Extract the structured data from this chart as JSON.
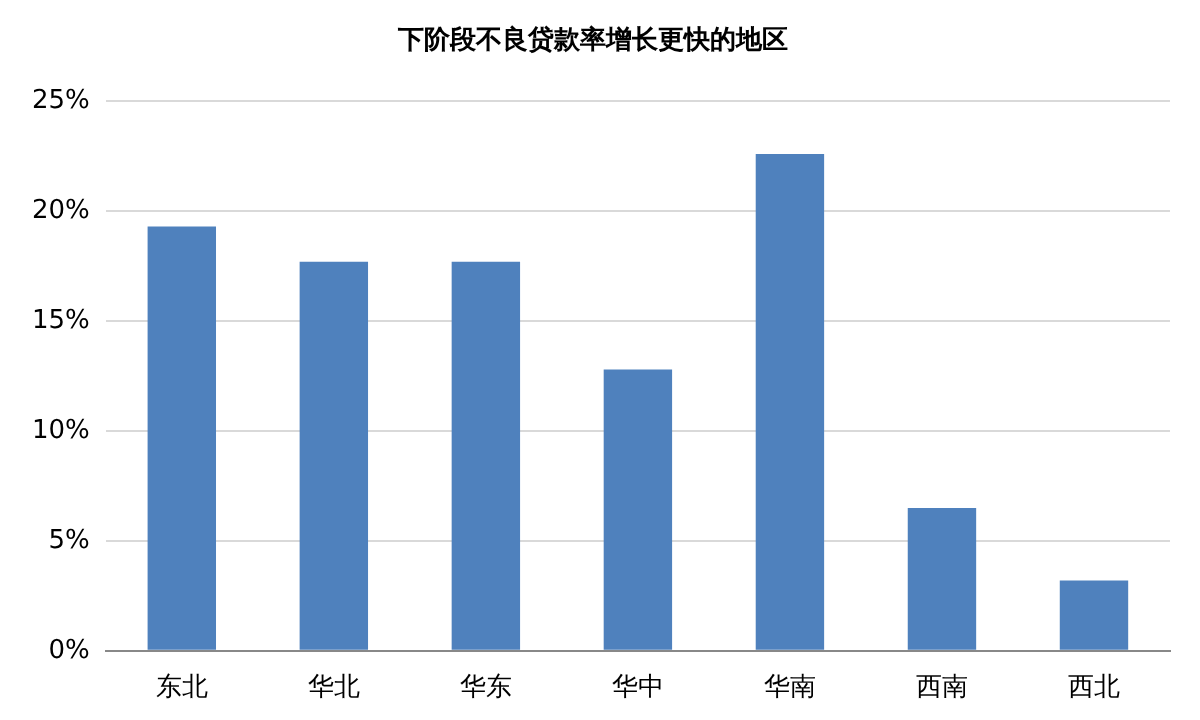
{
  "chart_data": {
    "type": "bar",
    "title": "下阶段不良贷款率增长更快的地区",
    "categories": [
      "东北",
      "华北",
      "华东",
      "华中",
      "华南",
      "西南",
      "西北"
    ],
    "values": [
      19.3,
      17.7,
      17.7,
      12.8,
      22.6,
      6.5,
      3.2
    ],
    "color": "#4f81bd",
    "ylim": [
      0,
      25
    ],
    "yticks": [
      {
        "value": 0,
        "label": "0%"
      },
      {
        "value": 5,
        "label": "5%"
      },
      {
        "value": 10,
        "label": "10%"
      },
      {
        "value": 15,
        "label": "15%"
      },
      {
        "value": 20,
        "label": "20%"
      },
      {
        "value": 25,
        "label": "25%"
      }
    ],
    "grid": "y"
  }
}
